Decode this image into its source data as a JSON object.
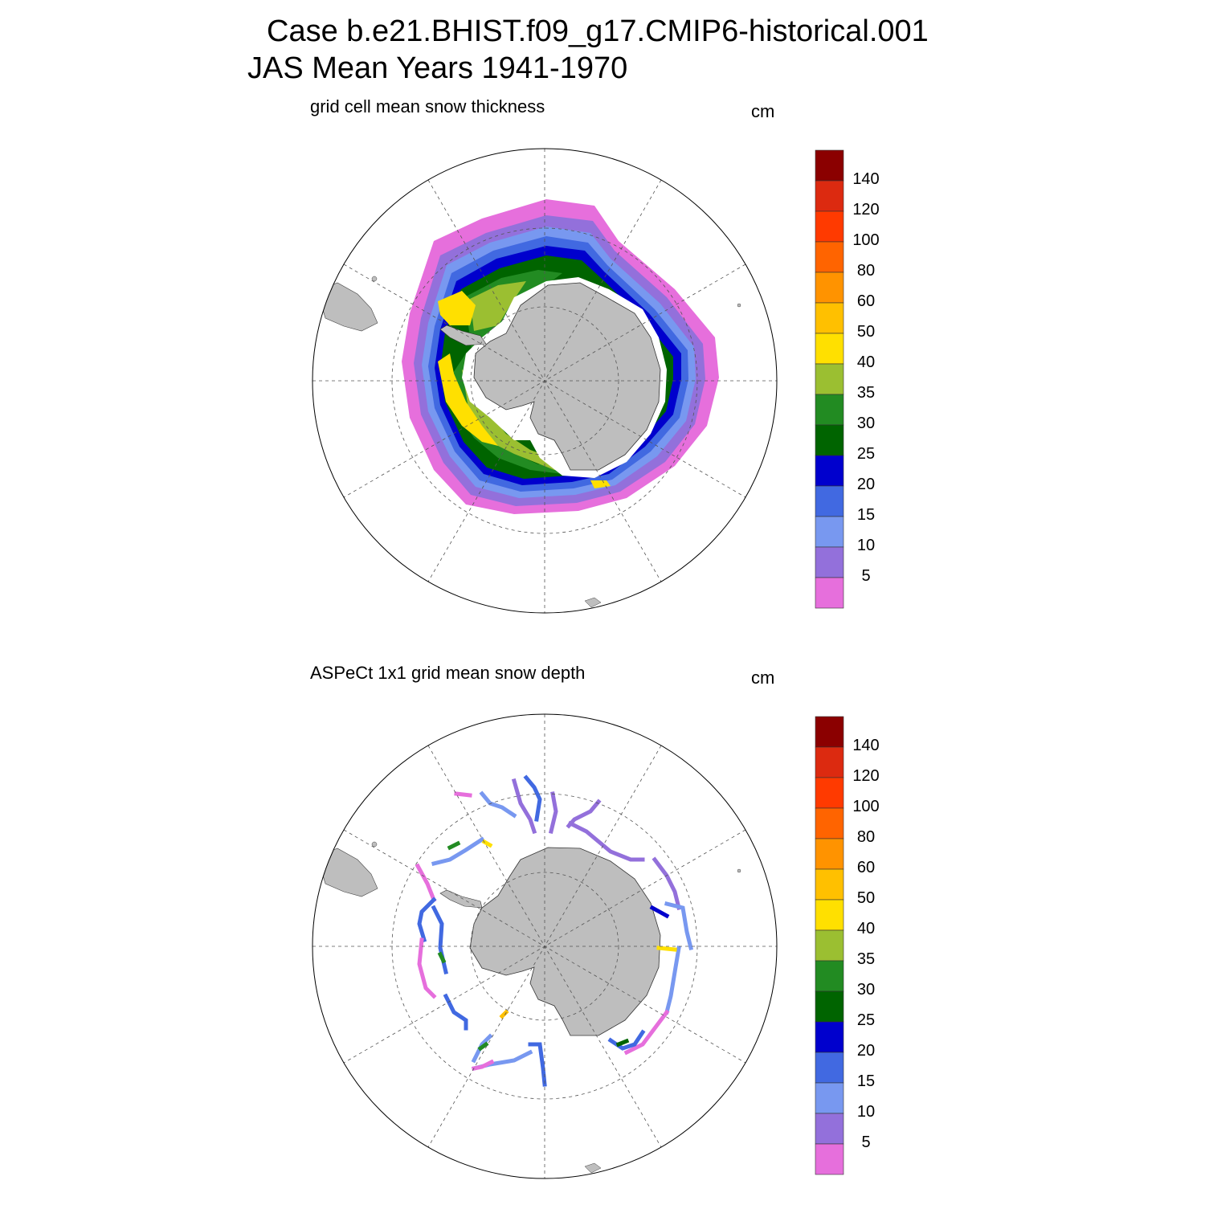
{
  "header": {
    "title_line1": "Case b.e21.BHIST.f09_g17.CMIP6-historical.001",
    "title_line2": "JAS Mean   Years 1941-1970"
  },
  "panels": [
    {
      "subtitle": "grid cell mean snow thickness",
      "units": "cm"
    },
    {
      "subtitle": "ASPeCt 1x1 grid mean snow depth",
      "units": "cm"
    }
  ],
  "colorbar": {
    "labels": [
      "140",
      "120",
      "100",
      "80",
      "60",
      "50",
      "40",
      "35",
      "30",
      "25",
      "20",
      "15",
      "10",
      "5"
    ],
    "colors": [
      "#8b0000",
      "#dc2a10",
      "#ff3a00",
      "#ff6400",
      "#ff9300",
      "#ffc000",
      "#ffe000",
      "#9bbf31",
      "#228b22",
      "#006400",
      "#0000cd",
      "#4169e1",
      "#7898f0",
      "#9370db",
      "#e66fdc"
    ]
  },
  "map_colors": {
    "land": "#bebebe",
    "grid": "#555555"
  }
}
